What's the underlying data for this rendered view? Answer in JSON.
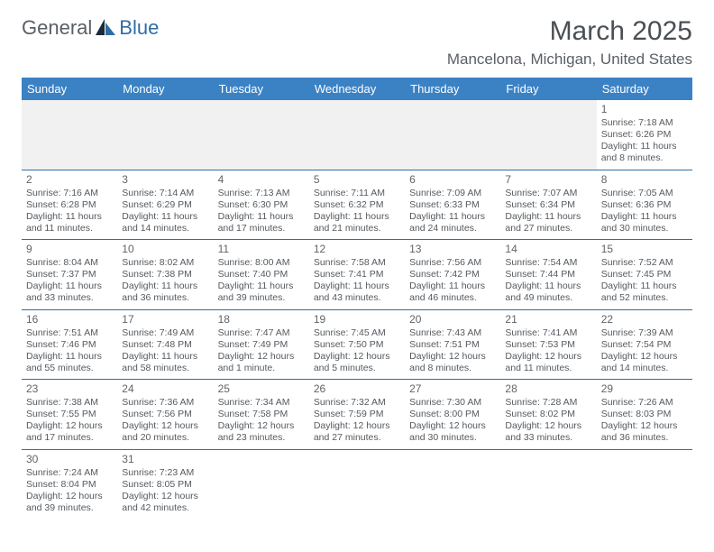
{
  "brand": {
    "general": "General",
    "blue": "Blue"
  },
  "title": "March 2025",
  "location": "Mancelona, Michigan, United States",
  "colors": {
    "header_bg": "#3b82c4",
    "header_text": "#ffffff",
    "border": "#2f6da8",
    "text": "#555a5f",
    "title_text": "#4a4f54"
  },
  "dayHeaders": [
    "Sunday",
    "Monday",
    "Tuesday",
    "Wednesday",
    "Thursday",
    "Friday",
    "Saturday"
  ],
  "weeks": [
    [
      null,
      null,
      null,
      null,
      null,
      null,
      {
        "n": "1",
        "sunrise": "Sunrise: 7:18 AM",
        "sunset": "Sunset: 6:26 PM",
        "daylight": "Daylight: 11 hours and 8 minutes."
      }
    ],
    [
      {
        "n": "2",
        "sunrise": "Sunrise: 7:16 AM",
        "sunset": "Sunset: 6:28 PM",
        "daylight": "Daylight: 11 hours and 11 minutes."
      },
      {
        "n": "3",
        "sunrise": "Sunrise: 7:14 AM",
        "sunset": "Sunset: 6:29 PM",
        "daylight": "Daylight: 11 hours and 14 minutes."
      },
      {
        "n": "4",
        "sunrise": "Sunrise: 7:13 AM",
        "sunset": "Sunset: 6:30 PM",
        "daylight": "Daylight: 11 hours and 17 minutes."
      },
      {
        "n": "5",
        "sunrise": "Sunrise: 7:11 AM",
        "sunset": "Sunset: 6:32 PM",
        "daylight": "Daylight: 11 hours and 21 minutes."
      },
      {
        "n": "6",
        "sunrise": "Sunrise: 7:09 AM",
        "sunset": "Sunset: 6:33 PM",
        "daylight": "Daylight: 11 hours and 24 minutes."
      },
      {
        "n": "7",
        "sunrise": "Sunrise: 7:07 AM",
        "sunset": "Sunset: 6:34 PM",
        "daylight": "Daylight: 11 hours and 27 minutes."
      },
      {
        "n": "8",
        "sunrise": "Sunrise: 7:05 AM",
        "sunset": "Sunset: 6:36 PM",
        "daylight": "Daylight: 11 hours and 30 minutes."
      }
    ],
    [
      {
        "n": "9",
        "sunrise": "Sunrise: 8:04 AM",
        "sunset": "Sunset: 7:37 PM",
        "daylight": "Daylight: 11 hours and 33 minutes."
      },
      {
        "n": "10",
        "sunrise": "Sunrise: 8:02 AM",
        "sunset": "Sunset: 7:38 PM",
        "daylight": "Daylight: 11 hours and 36 minutes."
      },
      {
        "n": "11",
        "sunrise": "Sunrise: 8:00 AM",
        "sunset": "Sunset: 7:40 PM",
        "daylight": "Daylight: 11 hours and 39 minutes."
      },
      {
        "n": "12",
        "sunrise": "Sunrise: 7:58 AM",
        "sunset": "Sunset: 7:41 PM",
        "daylight": "Daylight: 11 hours and 43 minutes."
      },
      {
        "n": "13",
        "sunrise": "Sunrise: 7:56 AM",
        "sunset": "Sunset: 7:42 PM",
        "daylight": "Daylight: 11 hours and 46 minutes."
      },
      {
        "n": "14",
        "sunrise": "Sunrise: 7:54 AM",
        "sunset": "Sunset: 7:44 PM",
        "daylight": "Daylight: 11 hours and 49 minutes."
      },
      {
        "n": "15",
        "sunrise": "Sunrise: 7:52 AM",
        "sunset": "Sunset: 7:45 PM",
        "daylight": "Daylight: 11 hours and 52 minutes."
      }
    ],
    [
      {
        "n": "16",
        "sunrise": "Sunrise: 7:51 AM",
        "sunset": "Sunset: 7:46 PM",
        "daylight": "Daylight: 11 hours and 55 minutes."
      },
      {
        "n": "17",
        "sunrise": "Sunrise: 7:49 AM",
        "sunset": "Sunset: 7:48 PM",
        "daylight": "Daylight: 11 hours and 58 minutes."
      },
      {
        "n": "18",
        "sunrise": "Sunrise: 7:47 AM",
        "sunset": "Sunset: 7:49 PM",
        "daylight": "Daylight: 12 hours and 1 minute."
      },
      {
        "n": "19",
        "sunrise": "Sunrise: 7:45 AM",
        "sunset": "Sunset: 7:50 PM",
        "daylight": "Daylight: 12 hours and 5 minutes."
      },
      {
        "n": "20",
        "sunrise": "Sunrise: 7:43 AM",
        "sunset": "Sunset: 7:51 PM",
        "daylight": "Daylight: 12 hours and 8 minutes."
      },
      {
        "n": "21",
        "sunrise": "Sunrise: 7:41 AM",
        "sunset": "Sunset: 7:53 PM",
        "daylight": "Daylight: 12 hours and 11 minutes."
      },
      {
        "n": "22",
        "sunrise": "Sunrise: 7:39 AM",
        "sunset": "Sunset: 7:54 PM",
        "daylight": "Daylight: 12 hours and 14 minutes."
      }
    ],
    [
      {
        "n": "23",
        "sunrise": "Sunrise: 7:38 AM",
        "sunset": "Sunset: 7:55 PM",
        "daylight": "Daylight: 12 hours and 17 minutes."
      },
      {
        "n": "24",
        "sunrise": "Sunrise: 7:36 AM",
        "sunset": "Sunset: 7:56 PM",
        "daylight": "Daylight: 12 hours and 20 minutes."
      },
      {
        "n": "25",
        "sunrise": "Sunrise: 7:34 AM",
        "sunset": "Sunset: 7:58 PM",
        "daylight": "Daylight: 12 hours and 23 minutes."
      },
      {
        "n": "26",
        "sunrise": "Sunrise: 7:32 AM",
        "sunset": "Sunset: 7:59 PM",
        "daylight": "Daylight: 12 hours and 27 minutes."
      },
      {
        "n": "27",
        "sunrise": "Sunrise: 7:30 AM",
        "sunset": "Sunset: 8:00 PM",
        "daylight": "Daylight: 12 hours and 30 minutes."
      },
      {
        "n": "28",
        "sunrise": "Sunrise: 7:28 AM",
        "sunset": "Sunset: 8:02 PM",
        "daylight": "Daylight: 12 hours and 33 minutes."
      },
      {
        "n": "29",
        "sunrise": "Sunrise: 7:26 AM",
        "sunset": "Sunset: 8:03 PM",
        "daylight": "Daylight: 12 hours and 36 minutes."
      }
    ],
    [
      {
        "n": "30",
        "sunrise": "Sunrise: 7:24 AM",
        "sunset": "Sunset: 8:04 PM",
        "daylight": "Daylight: 12 hours and 39 minutes."
      },
      {
        "n": "31",
        "sunrise": "Sunrise: 7:23 AM",
        "sunset": "Sunset: 8:05 PM",
        "daylight": "Daylight: 12 hours and 42 minutes."
      },
      null,
      null,
      null,
      null,
      null
    ]
  ]
}
